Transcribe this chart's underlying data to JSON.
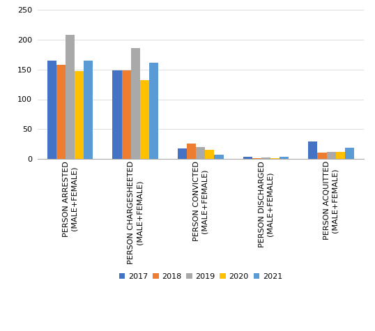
{
  "categories": [
    "PERSON ARRESTED\n(MALE+FEMALE)",
    "PERSON CHARGESHEETED\n(MALE+FEMALE)",
    "PERSON CONVICTED\n(MALE+FEMALE)",
    "PERSON DISCHARGED\n(MALE+FEMALE)",
    "PERSON ACQUITTED\n(MALE+FEMALE)"
  ],
  "years": [
    "2017",
    "2018",
    "2019",
    "2020",
    "2021"
  ],
  "values": [
    [
      165,
      158,
      208,
      147,
      165
    ],
    [
      148,
      148,
      186,
      132,
      161
    ],
    [
      18,
      26,
      20,
      15,
      7
    ],
    [
      4,
      1,
      2,
      1,
      4
    ],
    [
      29,
      10,
      12,
      12,
      19
    ]
  ],
  "colors": [
    "#4472C4",
    "#ED7D31",
    "#A9A9A9",
    "#FFC000",
    "#5B9BD5"
  ],
  "ylim": [
    0,
    250
  ],
  "yticks": [
    0,
    50,
    100,
    150,
    200,
    250
  ],
  "bar_width": 0.14,
  "background_color": "#ffffff",
  "tick_fontsize": 8,
  "legend_fontsize": 8
}
